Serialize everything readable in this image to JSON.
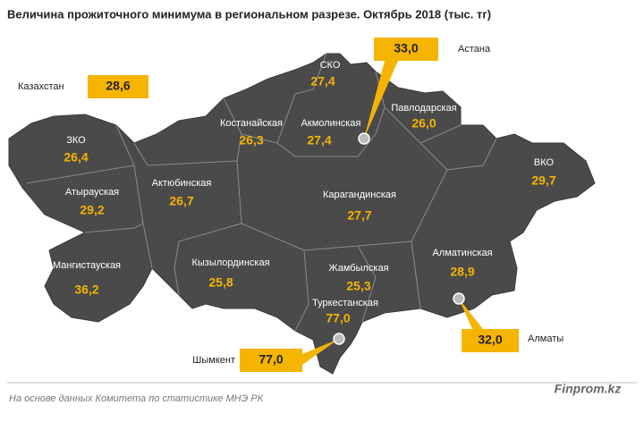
{
  "title": "Величина прожиточного минимума  в региональном  разрезе. Октябрь 2018 (тыс. тг)",
  "country": {
    "name": "Казахстан",
    "value": "28,6"
  },
  "regions": [
    {
      "name": "ЗКО",
      "value": "26,4"
    },
    {
      "name": "Атырауская",
      "value": "29,2"
    },
    {
      "name": "Мангистауская",
      "value": "36,2"
    },
    {
      "name": "Актюбинская",
      "value": "26,7"
    },
    {
      "name": "Костанайская",
      "value": "26,3"
    },
    {
      "name": "СКО",
      "value": "27,4"
    },
    {
      "name": "Акмолинская",
      "value": "27,4"
    },
    {
      "name": "Павлодарская",
      "value": "26,0"
    },
    {
      "name": "ВКО",
      "value": "29,7"
    },
    {
      "name": "Карагандинская",
      "value": "27,7"
    },
    {
      "name": "Кызылординская",
      "value": "25,8"
    },
    {
      "name": "Жамбылская",
      "value": "25,3"
    },
    {
      "name": "Алматинская",
      "value": "28,9"
    },
    {
      "name": "Туркестанская",
      "value": "77,0"
    }
  ],
  "cities": [
    {
      "name": "Астана",
      "value": "33,0"
    },
    {
      "name": "Алматы",
      "value": "32,0"
    },
    {
      "name": "Шымкент",
      "value": "77,0"
    }
  ],
  "footer": {
    "note": "На основе данных  Комитета по статистике МНЭ РК",
    "brand": "Finprom.kz"
  }
}
